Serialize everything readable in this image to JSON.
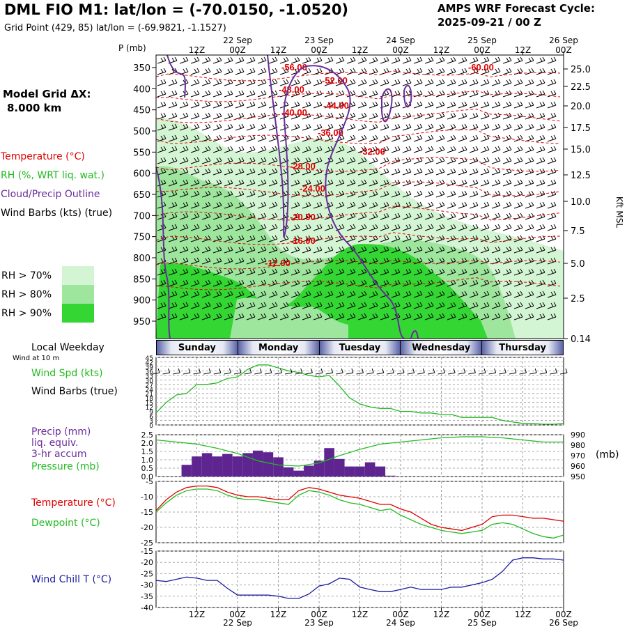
{
  "header": {
    "title": "DML FIO M1:  lat/lon = (-70.0150, -1.0520)",
    "subtitle": "Grid Point (429, 85) lat/lon = (-69.9821, -1.1527)",
    "cycle_line1": "AMPS WRF Forecast Cycle:",
    "cycle_line2": "2025-09-21 / 00  Z"
  },
  "legend": {
    "grid_label_1": "Model Grid ΔX:",
    "grid_label_2": "8.000 km",
    "temperature": "Temperature (°C)",
    "rh": "RH (%, WRT liq. wat.)",
    "cloud": "Cloud/Precip Outline",
    "wind": "Wind Barbs (kts) (true)",
    "rh70": "RH > 70%",
    "rh80": "RH > 80%",
    "rh90": "RH > 90%",
    "rh70_color": "#d4f5d4",
    "rh80_color": "#9ee59e",
    "rh90_color": "#33d633",
    "temp_color": "#e00000",
    "rh_color": "#22bb22",
    "cloud_color": "#6a2c9a"
  },
  "panel_labels": {
    "p_axis": "P (mb)",
    "kft": "Kft MSL",
    "local_weekday": "Local Weekday",
    "wind_at_10m": "Wind at 10 m",
    "wind_spd": "Wind Spd (kts)",
    "wind_barbs": "Wind Barbs (true)",
    "precip1": "Precip (mm)",
    "precip2": "liq. equiv.",
    "precip3": "3-hr accum",
    "pressure": "Pressure (mb)",
    "mb": "(mb)",
    "temperature": "Temperature (°C)",
    "dewpoint": "Dewpoint (°C)",
    "wind_chill": "Wind Chill T (°C)"
  },
  "days": [
    "Sunday",
    "Monday",
    "Tuesday",
    "Wednesday",
    "Thursday"
  ],
  "time_axis": {
    "hour_labels": [
      "12Z",
      "00Z",
      "12Z",
      "00Z",
      "12Z",
      "00Z",
      "12Z",
      "00Z",
      "12Z",
      "00Z"
    ],
    "date_labels": [
      "22 Sep",
      "23 Sep",
      "24 Sep",
      "25 Sep",
      "26 Sep"
    ]
  },
  "chart_data": [
    {
      "type": "heatmap",
      "title": "Time-height cross section",
      "y_left_ticks": [
        "350",
        "400",
        "450",
        "500",
        "550",
        "600",
        "650",
        "700",
        "750",
        "800",
        "850",
        "900",
        "950"
      ],
      "y_right_ticks": [
        "25.0",
        "22.5",
        "20.0",
        "17.5",
        "15.0",
        "12.5",
        "10.0",
        "7.5",
        "5.0",
        "2.5",
        "0.14"
      ],
      "temperature_contour_labels": [
        "-56.00",
        "-60.00",
        "-48.00",
        "-52.00",
        "-40.00",
        "-44.00",
        "-36.00",
        "-32.00",
        "-28.00",
        "-24.00",
        "-20.00",
        "-16.00",
        "-12.00"
      ]
    },
    {
      "type": "line",
      "title": "Wind Spd (kts)",
      "y_ticks": [
        "45",
        "42",
        "39",
        "36",
        "33",
        "30",
        "27",
        "24",
        "21",
        "18",
        "15",
        "12",
        "9",
        "6",
        "3",
        "0"
      ],
      "ylim": [
        0,
        45
      ],
      "x_hours": [
        0,
        3,
        6,
        9,
        12,
        15,
        18,
        21,
        24,
        27,
        30,
        33,
        36,
        39,
        42,
        45,
        48,
        51,
        54,
        57,
        60,
        63,
        66,
        69,
        72,
        75,
        78,
        81,
        84,
        87,
        90,
        93,
        96,
        99,
        102,
        105,
        108,
        111,
        114,
        117,
        120
      ],
      "values": [
        8,
        15,
        20,
        21,
        27,
        27,
        28,
        31,
        32,
        37,
        40,
        40,
        38,
        36,
        35,
        33,
        32,
        33,
        26,
        18,
        14,
        12,
        11,
        11,
        9,
        9,
        8,
        8,
        7,
        7,
        5,
        5,
        5,
        5,
        3,
        2,
        1,
        1,
        0.5,
        0.5,
        1
      ]
    },
    {
      "type": "bar",
      "title": "Precip (mm) / Pressure (mb)",
      "y_left_ticks": [
        "2.5",
        "2.0",
        "1.5",
        "1.0",
        "0.5",
        "0.0"
      ],
      "y_right_ticks": [
        "990",
        "980",
        "970",
        "960",
        "950"
      ],
      "precip_ylim": [
        0,
        2.5
      ],
      "pressure_ylim": [
        950,
        990
      ],
      "precip_x_hours": [
        9,
        12,
        15,
        18,
        21,
        24,
        27,
        30,
        33,
        36,
        39,
        42,
        45,
        48,
        51,
        54,
        57,
        60,
        63,
        66,
        69
      ],
      "precip_values": [
        0.7,
        1.2,
        1.4,
        1.2,
        1.35,
        1.2,
        1.4,
        1.55,
        1.45,
        1.15,
        0.55,
        0.35,
        0.65,
        0.95,
        1.7,
        1.05,
        0.6,
        0.6,
        0.85,
        0.6,
        0.05
      ],
      "pressure_x_hours": [
        0,
        6,
        12,
        18,
        24,
        30,
        36,
        42,
        48,
        54,
        60,
        66,
        72,
        78,
        84,
        90,
        96,
        102,
        108,
        114,
        120
      ],
      "pressure_values": [
        985,
        983,
        981,
        977,
        972,
        965,
        961,
        960,
        963,
        970,
        976,
        981,
        983,
        985,
        987,
        988,
        988,
        987,
        985,
        983,
        983
      ]
    },
    {
      "type": "line",
      "title": "Temperature / Dewpoint (°C)",
      "y_ticks": [
        "-5",
        "-10",
        "-15",
        "-20",
        "-25"
      ],
      "ylim": [
        -25,
        -5
      ],
      "x_hours": [
        0,
        3,
        6,
        9,
        12,
        15,
        18,
        21,
        24,
        27,
        30,
        33,
        36,
        39,
        42,
        45,
        48,
        51,
        54,
        57,
        60,
        63,
        66,
        69,
        72,
        75,
        78,
        81,
        84,
        87,
        90,
        93,
        96,
        99,
        102,
        105,
        108,
        111,
        114,
        117,
        120
      ],
      "series": [
        {
          "name": "Temperature",
          "values": [
            -14.5,
            -11,
            -8.5,
            -7,
            -6.5,
            -6.5,
            -7,
            -8.5,
            -9.5,
            -10,
            -10,
            -10.5,
            -11,
            -11,
            -8,
            -7,
            -7.5,
            -8.5,
            -9.5,
            -10,
            -10.5,
            -11.5,
            -12.5,
            -12.5,
            -14,
            -15,
            -17,
            -19,
            -20,
            -20.5,
            -21,
            -20,
            -19,
            -16.5,
            -16,
            -16,
            -16.5,
            -17,
            -17,
            -17.5,
            -18
          ]
        },
        {
          "name": "Dewpoint",
          "values": [
            -15,
            -12,
            -9.5,
            -8,
            -7.5,
            -7.5,
            -8,
            -9.5,
            -10.5,
            -11,
            -11,
            -11.5,
            -12,
            -12.5,
            -9.5,
            -8,
            -8.5,
            -9.5,
            -11,
            -12,
            -12.5,
            -13.5,
            -14.5,
            -14,
            -16,
            -17.5,
            -19,
            -20,
            -21,
            -21.5,
            -22,
            -21.5,
            -21,
            -19,
            -18.5,
            -19,
            -20.5,
            -22,
            -23,
            -23.5,
            -22.5
          ]
        }
      ]
    },
    {
      "type": "line",
      "title": "Wind Chill T (°C)",
      "y_ticks": [
        "-15",
        "-20",
        "-25",
        "-30",
        "-35",
        "-40"
      ],
      "ylim": [
        -40,
        -15
      ],
      "x_hours": [
        0,
        3,
        6,
        9,
        12,
        15,
        18,
        21,
        24,
        27,
        30,
        33,
        36,
        39,
        42,
        45,
        48,
        51,
        54,
        57,
        60,
        63,
        66,
        69,
        72,
        75,
        78,
        81,
        84,
        87,
        90,
        93,
        96,
        99,
        102,
        105,
        108,
        111,
        114,
        117,
        120
      ],
      "values": [
        -28,
        -28.5,
        -27.5,
        -26.5,
        -27,
        -28,
        -28,
        -31.5,
        -34.5,
        -34.5,
        -34.5,
        -34.5,
        -35,
        -36,
        -36,
        -34,
        -30.5,
        -29.5,
        -27,
        -27.5,
        -31,
        -32,
        -33,
        -33,
        -32,
        -31,
        -32,
        -32,
        -32,
        -31,
        -31,
        -30,
        -29,
        -27.5,
        -24,
        -19,
        -18,
        -18,
        -18.5,
        -18.5,
        -19
      ]
    }
  ]
}
